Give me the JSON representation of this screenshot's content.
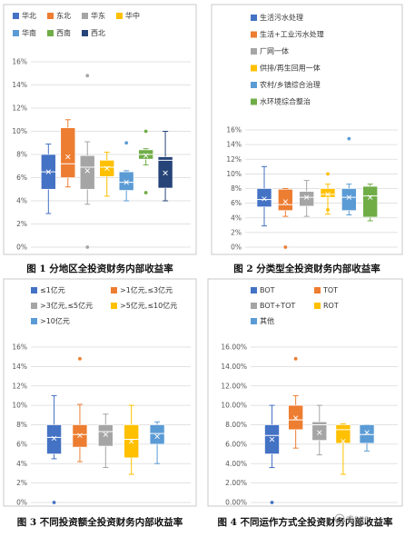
{
  "chart_data": [
    {
      "type": "box",
      "caption": "图 1 分地区全投资财务内部收益率",
      "y_ticks": [
        "0%",
        "2%",
        "4%",
        "6%",
        "8%",
        "10%",
        "12%",
        "14%",
        "16%"
      ],
      "ylim": [
        0,
        16
      ],
      "legend_position": "top",
      "series": [
        {
          "name": "华北",
          "color": "#4472c4",
          "min": 2.9,
          "q1": 5.0,
          "median": 6.5,
          "q3": 8.0,
          "max": 8.9,
          "mean": 6.5,
          "outliers": []
        },
        {
          "name": "东北",
          "color": "#ed7d31",
          "min": 5.2,
          "q1": 6.0,
          "median": 7.2,
          "q3": 10.3,
          "max": 11.0,
          "mean": 7.8,
          "outliers": []
        },
        {
          "name": "华东",
          "color": "#a5a5a5",
          "min": 3.7,
          "q1": 5.0,
          "median": 6.9,
          "q3": 7.9,
          "max": 9.1,
          "mean": 6.6,
          "outliers": [
            0.0,
            14.8
          ]
        },
        {
          "name": "华中",
          "color": "#ffc000",
          "min": 4.4,
          "q1": 6.1,
          "median": 6.9,
          "q3": 7.5,
          "max": 8.2,
          "mean": 6.8,
          "outliers": []
        },
        {
          "name": "华南",
          "color": "#5b9bd5",
          "min": 4.0,
          "q1": 4.9,
          "median": 5.6,
          "q3": 6.5,
          "max": 6.6,
          "mean": 5.6,
          "outliers": [
            9.0
          ]
        },
        {
          "name": "西南",
          "color": "#70ad47",
          "min": 7.1,
          "q1": 7.6,
          "median": 8.0,
          "q3": 8.4,
          "max": 8.5,
          "mean": 7.9,
          "outliers": [
            4.7,
            10.0
          ]
        },
        {
          "name": "西北",
          "color": "#264478",
          "min": 4.0,
          "q1": 5.1,
          "median": 7.5,
          "q3": 7.8,
          "max": 10.0,
          "mean": 6.4,
          "outliers": []
        }
      ]
    },
    {
      "type": "box",
      "caption": "图 2 分类型全投资财务内部收益率",
      "y_ticks": [
        "0%",
        "2%",
        "4%",
        "6%",
        "8%",
        "10%",
        "12%",
        "14%",
        "16%"
      ],
      "ylim": [
        0,
        16
      ],
      "legend_position": "top",
      "series": [
        {
          "name": "生活污水处理",
          "color": "#4472c4",
          "min": 2.9,
          "q1": 5.5,
          "median": 6.5,
          "q3": 8.0,
          "max": 11.0,
          "mean": 6.6,
          "outliers": []
        },
        {
          "name": "生活+工业污水处理",
          "color": "#ed7d31",
          "min": 4.2,
          "q1": 5.0,
          "median": 5.8,
          "q3": 7.9,
          "max": 8.0,
          "mean": 6.2,
          "outliers": [
            0.0
          ]
        },
        {
          "name": "厂网一体",
          "color": "#a5a5a5",
          "min": 4.2,
          "q1": 5.6,
          "median": 6.8,
          "q3": 7.6,
          "max": 9.1,
          "mean": 6.8,
          "outliers": []
        },
        {
          "name": "供排/再生回用一体",
          "color": "#ffc000",
          "min": 4.5,
          "q1": 6.8,
          "median": 7.2,
          "q3": 8.0,
          "max": 8.6,
          "mean": 7.2,
          "outliers": [
            10.0,
            5.1
          ]
        },
        {
          "name": "农村/乡镇综合治理",
          "color": "#5b9bd5",
          "min": 4.4,
          "q1": 5.0,
          "median": 6.8,
          "q3": 8.0,
          "max": 8.6,
          "mean": 6.8,
          "outliers": [
            14.8
          ]
        },
        {
          "name": "水环境综合整治",
          "color": "#70ad47",
          "min": 3.6,
          "q1": 4.1,
          "median": 7.0,
          "q3": 8.3,
          "max": 8.6,
          "mean": 6.8,
          "outliers": []
        }
      ]
    },
    {
      "type": "box",
      "caption": "图 3 不同投资额全投资财务内部收益率",
      "y_ticks": [
        "0%",
        "2%",
        "4%",
        "6%",
        "8%",
        "10%",
        "12%",
        "14%",
        "16%"
      ],
      "ylim": [
        0,
        16
      ],
      "legend_position": "top",
      "series": [
        {
          "name": "≤1亿元",
          "color": "#4472c4",
          "min": 4.5,
          "q1": 5.0,
          "median": 6.7,
          "q3": 8.0,
          "max": 11.0,
          "mean": 6.6,
          "outliers": [
            0.0
          ]
        },
        {
          "name": ">1亿元,≤3亿元",
          "color": "#ed7d31",
          "min": 4.2,
          "q1": 5.7,
          "median": 7.0,
          "q3": 8.0,
          "max": 10.1,
          "mean": 6.9,
          "outliers": [
            14.8
          ]
        },
        {
          "name": ">3亿元,≤5亿元",
          "color": "#a5a5a5",
          "min": 3.6,
          "q1": 5.8,
          "median": 7.3,
          "q3": 8.0,
          "max": 9.1,
          "mean": 7.0,
          "outliers": []
        },
        {
          "name": ">5亿元,≤10亿元",
          "color": "#ffc000",
          "min": 2.9,
          "q1": 4.6,
          "median": 6.5,
          "q3": 8.0,
          "max": 10.0,
          "mean": 6.3,
          "outliers": []
        },
        {
          "name": ">10亿元",
          "color": "#5b9bd5",
          "min": 4.0,
          "q1": 6.0,
          "median": 7.1,
          "q3": 8.0,
          "max": 8.3,
          "mean": 6.8,
          "outliers": []
        }
      ]
    },
    {
      "type": "box",
      "caption": "图 4 不同运作方式全投资财务内部收益率",
      "y_ticks": [
        "0.00%",
        "2.00%",
        "4.00%",
        "6.00%",
        "8.00%",
        "10.00%",
        "12.00%",
        "14.00%",
        "16.00%"
      ],
      "ylim": [
        0,
        16
      ],
      "legend_position": "top",
      "series": [
        {
          "name": "BOT",
          "color": "#4472c4",
          "min": 3.6,
          "q1": 5.0,
          "median": 6.9,
          "q3": 8.0,
          "max": 10.0,
          "mean": 6.5,
          "outliers": [
            0.0
          ]
        },
        {
          "name": "TOT",
          "color": "#ed7d31",
          "min": 5.6,
          "q1": 7.5,
          "median": 8.5,
          "q3": 10.0,
          "max": 11.0,
          "mean": 8.7,
          "outliers": [
            14.8
          ]
        },
        {
          "name": "BOT+TOT",
          "color": "#a5a5a5",
          "min": 4.9,
          "q1": 6.4,
          "median": 8.0,
          "q3": 8.3,
          "max": 10.0,
          "mean": 7.2,
          "outliers": []
        },
        {
          "name": "ROT",
          "color": "#ffc000",
          "min": 2.9,
          "q1": 6.1,
          "median": 7.5,
          "q3": 8.0,
          "max": 8.1,
          "mean": 6.3,
          "outliers": []
        },
        {
          "name": "其他",
          "color": "#5b9bd5",
          "min": 5.3,
          "q1": 6.1,
          "median": 7.0,
          "q3": 8.0,
          "max": 8.0,
          "mean": 7.2,
          "outliers": []
        }
      ]
    }
  ],
  "watermark": "睿PPP"
}
